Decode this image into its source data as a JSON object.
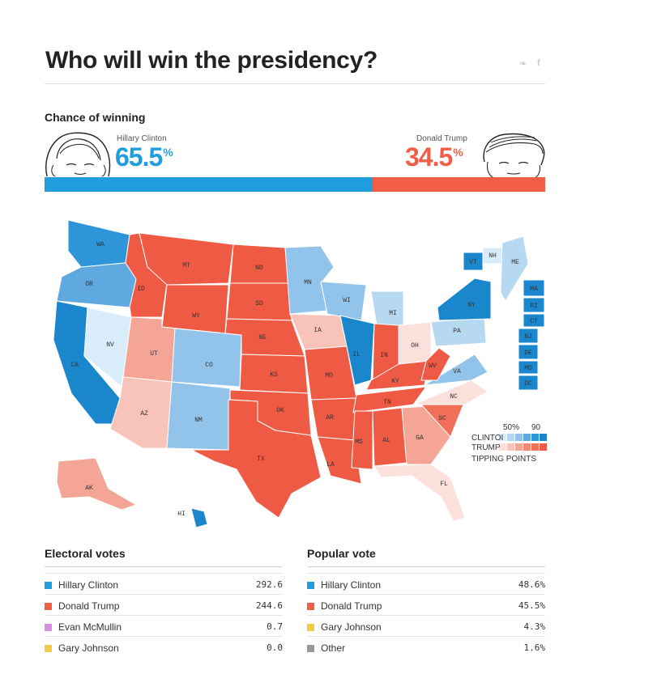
{
  "title": "Who will win the presidency?",
  "social": {
    "twitter_icon": "twitter-icon",
    "facebook_icon": "facebook-icon",
    "twitter_glyph": "❧",
    "facebook_glyph": "f"
  },
  "chance": {
    "heading": "Chance of winning",
    "clinton": {
      "name": "Hillary Clinton",
      "value": "65.5",
      "unit": "%",
      "fraction": 0.655,
      "color": "#1f9ddc"
    },
    "trump": {
      "name": "Donald Trump",
      "value": "34.5",
      "unit": "%",
      "fraction": 0.345,
      "color": "#f15e48"
    }
  },
  "legend": {
    "ticks": [
      "50%",
      "90"
    ],
    "clinton_label": "CLINTOI",
    "trump_label": "TRUMP",
    "tipping_label": "TIPPING POINTS",
    "clinton_colors": [
      "#d9ecf9",
      "#b7d8f1",
      "#92c3ea",
      "#5fa9e0",
      "#2e95d8",
      "#1a86cc"
    ],
    "trump_colors": [
      "#fbe0dc",
      "#f8c3b8",
      "#f5a596",
      "#f48672",
      "#f26f5a",
      "#ef5a45"
    ]
  },
  "chart_data": {
    "type": "map",
    "states": [
      {
        "abbr": "WA",
        "lean": "clinton",
        "tier": 4
      },
      {
        "abbr": "OR",
        "lean": "clinton",
        "tier": 3
      },
      {
        "abbr": "CA",
        "lean": "clinton",
        "tier": 5
      },
      {
        "abbr": "NV",
        "lean": "clinton",
        "tier": 0
      },
      {
        "abbr": "ID",
        "lean": "trump",
        "tier": 5
      },
      {
        "abbr": "MT",
        "lean": "trump",
        "tier": 5
      },
      {
        "abbr": "WY",
        "lean": "trump",
        "tier": 5
      },
      {
        "abbr": "UT",
        "lean": "trump",
        "tier": 2
      },
      {
        "abbr": "AZ",
        "lean": "trump",
        "tier": 1
      },
      {
        "abbr": "CO",
        "lean": "clinton",
        "tier": 2
      },
      {
        "abbr": "NM",
        "lean": "clinton",
        "tier": 2
      },
      {
        "abbr": "ND",
        "lean": "trump",
        "tier": 5
      },
      {
        "abbr": "SD",
        "lean": "trump",
        "tier": 5
      },
      {
        "abbr": "NE",
        "lean": "trump",
        "tier": 5
      },
      {
        "abbr": "KS",
        "lean": "trump",
        "tier": 5
      },
      {
        "abbr": "OK",
        "lean": "trump",
        "tier": 5
      },
      {
        "abbr": "TX",
        "lean": "trump",
        "tier": 5
      },
      {
        "abbr": "MN",
        "lean": "clinton",
        "tier": 2
      },
      {
        "abbr": "IA",
        "lean": "trump",
        "tier": 1
      },
      {
        "abbr": "MO",
        "lean": "trump",
        "tier": 5
      },
      {
        "abbr": "AR",
        "lean": "trump",
        "tier": 5
      },
      {
        "abbr": "LA",
        "lean": "trump",
        "tier": 5
      },
      {
        "abbr": "WI",
        "lean": "clinton",
        "tier": 2
      },
      {
        "abbr": "IL",
        "lean": "clinton",
        "tier": 5
      },
      {
        "abbr": "MI",
        "lean": "clinton",
        "tier": 1
      },
      {
        "abbr": "IN",
        "lean": "trump",
        "tier": 5
      },
      {
        "abbr": "OH",
        "lean": "trump",
        "tier": 0
      },
      {
        "abbr": "KY",
        "lean": "trump",
        "tier": 5
      },
      {
        "abbr": "TN",
        "lean": "trump",
        "tier": 5
      },
      {
        "abbr": "MS",
        "lean": "trump",
        "tier": 5
      },
      {
        "abbr": "AL",
        "lean": "trump",
        "tier": 5
      },
      {
        "abbr": "GA",
        "lean": "trump",
        "tier": 2
      },
      {
        "abbr": "FL",
        "lean": "trump",
        "tier": 0
      },
      {
        "abbr": "SC",
        "lean": "trump",
        "tier": 4
      },
      {
        "abbr": "NC",
        "lean": "trump",
        "tier": 0
      },
      {
        "abbr": "VA",
        "lean": "clinton",
        "tier": 2
      },
      {
        "abbr": "WV",
        "lean": "trump",
        "tier": 5
      },
      {
        "abbr": "PA",
        "lean": "clinton",
        "tier": 1
      },
      {
        "abbr": "NY",
        "lean": "clinton",
        "tier": 5
      },
      {
        "abbr": "VT",
        "lean": "clinton",
        "tier": 5
      },
      {
        "abbr": "NH",
        "lean": "clinton",
        "tier": 0
      },
      {
        "abbr": "ME",
        "lean": "clinton",
        "tier": 1
      },
      {
        "abbr": "MA",
        "lean": "clinton",
        "tier": 5
      },
      {
        "abbr": "RI",
        "lean": "clinton",
        "tier": 5
      },
      {
        "abbr": "CT",
        "lean": "clinton",
        "tier": 5
      },
      {
        "abbr": "NJ",
        "lean": "clinton",
        "tier": 5
      },
      {
        "abbr": "DE",
        "lean": "clinton",
        "tier": 5
      },
      {
        "abbr": "MD",
        "lean": "clinton",
        "tier": 5
      },
      {
        "abbr": "DC",
        "lean": "clinton",
        "tier": 5
      },
      {
        "abbr": "AK",
        "lean": "trump",
        "tier": 2
      },
      {
        "abbr": "HI",
        "lean": "clinton",
        "tier": 5
      }
    ]
  },
  "electoral": {
    "heading": "Electoral votes",
    "rows": [
      {
        "name": "Hillary Clinton",
        "value": "292.6",
        "color": "#1f9ddc"
      },
      {
        "name": "Donald Trump",
        "value": "244.6",
        "color": "#f15e48"
      },
      {
        "name": "Evan McMullin",
        "value": "0.7",
        "color": "#d88de0"
      },
      {
        "name": "Gary Johnson",
        "value": "0.0",
        "color": "#f3c94a"
      }
    ]
  },
  "popular": {
    "heading": "Popular vote",
    "rows": [
      {
        "name": "Hillary Clinton",
        "value": "48.6%",
        "color": "#1f9ddc"
      },
      {
        "name": "Donald Trump",
        "value": "45.5%",
        "color": "#f15e48"
      },
      {
        "name": "Gary Johnson",
        "value": "4.3%",
        "color": "#f3c94a"
      },
      {
        "name": "Other",
        "value": "1.6%",
        "color": "#999999"
      }
    ]
  }
}
